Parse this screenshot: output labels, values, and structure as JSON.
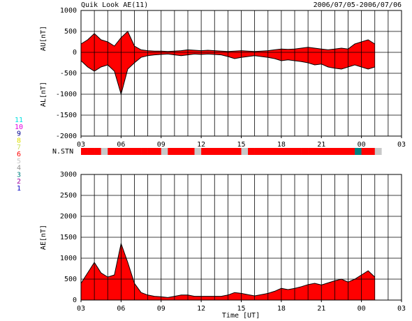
{
  "header": {
    "title": "Quik Look AE(11)",
    "date": "2006/07/05-2006/07/06",
    "xlabel": "Time [UT]"
  },
  "chart_data": [
    {
      "type": "band",
      "ylabels": [
        "AU[nT]",
        "AL[nT]"
      ],
      "x": [
        0,
        0.5,
        1,
        1.5,
        2,
        2.5,
        3,
        3.5,
        4,
        4.5,
        5,
        5.5,
        6,
        6.5,
        7,
        7.5,
        8,
        8.5,
        9,
        9.5,
        10,
        10.5,
        11,
        11.5,
        12,
        12.5,
        13,
        13.5,
        14,
        14.5,
        15,
        15.5,
        16,
        16.5,
        17,
        17.5,
        18,
        18.5,
        19,
        19.5,
        20,
        20.5,
        21,
        21.5,
        22
      ],
      "series": [
        {
          "name": "AU",
          "color": "#ff0000",
          "values": [
            200,
            300,
            450,
            300,
            250,
            150,
            350,
            500,
            150,
            60,
            40,
            30,
            30,
            20,
            30,
            40,
            60,
            50,
            40,
            50,
            40,
            30,
            20,
            30,
            40,
            30,
            20,
            30,
            40,
            60,
            80,
            70,
            80,
            100,
            120,
            100,
            80,
            60,
            80,
            100,
            80,
            200,
            250,
            300,
            200
          ]
        },
        {
          "name": "AL",
          "color": "#ff0000",
          "values": [
            -200,
            -350,
            -450,
            -350,
            -300,
            -450,
            -1000,
            -400,
            -250,
            -120,
            -80,
            -60,
            -50,
            -40,
            -60,
            -80,
            -60,
            -40,
            -50,
            -40,
            -50,
            -60,
            -100,
            -150,
            -120,
            -100,
            -80,
            -100,
            -120,
            -150,
            -200,
            -180,
            -200,
            -220,
            -250,
            -300,
            -280,
            -350,
            -380,
            -400,
            -350,
            -300,
            -350,
            -400,
            -350
          ]
        }
      ],
      "xlim": [
        0,
        24
      ],
      "ylim": [
        -2000,
        1000
      ],
      "yticks": [
        1000,
        500,
        0,
        -500,
        -1000,
        -1500,
        -2000
      ],
      "xticks": [
        {
          "value": 0,
          "label": "03"
        },
        {
          "value": 3,
          "label": "06"
        },
        {
          "value": 6,
          "label": "09"
        },
        {
          "value": 9,
          "label": "12"
        },
        {
          "value": 12,
          "label": "15"
        },
        {
          "value": 15,
          "label": "18"
        },
        {
          "value": 18,
          "label": "21"
        },
        {
          "value": 21,
          "label": "00"
        },
        {
          "value": 24,
          "label": "03"
        }
      ],
      "grid": true
    },
    {
      "type": "stn",
      "ylabel": "N.STN",
      "x": [
        0,
        0.5,
        1,
        1.5,
        2,
        2.5,
        3,
        3.5,
        4,
        4.5,
        5,
        5.5,
        6,
        6.5,
        7,
        7.5,
        8,
        8.5,
        9,
        9.5,
        10,
        10.5,
        11,
        11.5,
        12,
        12.5,
        13,
        13.5,
        14,
        14.5,
        15,
        15.5,
        16,
        16.5,
        17,
        17.5,
        18,
        18.5,
        19,
        19.5,
        20,
        20.5,
        21,
        21.5,
        22
      ],
      "values": [
        6,
        6,
        6,
        5,
        6,
        6,
        6,
        6,
        6,
        6,
        6,
        6,
        5,
        6,
        6,
        6,
        6,
        5,
        6,
        6,
        6,
        6,
        6,
        6,
        5,
        6,
        6,
        6,
        6,
        6,
        6,
        6,
        6,
        6,
        6,
        6,
        6,
        6,
        6,
        6,
        6,
        3,
        6,
        6,
        5
      ],
      "xlim": [
        0,
        24
      ],
      "legend": [
        {
          "label": "11",
          "color": "#00e0e0"
        },
        {
          "label": "10",
          "color": "#e000e0"
        },
        {
          "label": "9",
          "color": "#000090"
        },
        {
          "label": "8",
          "color": "#e0e000"
        },
        {
          "label": "7",
          "color": "#c8e060"
        },
        {
          "label": "6",
          "color": "#ff0000"
        },
        {
          "label": "5",
          "color": "#c8c8c8"
        },
        {
          "label": "4",
          "color": "#909090"
        },
        {
          "label": "3",
          "color": "#008080"
        },
        {
          "label": "2",
          "color": "#a000a0"
        },
        {
          "label": "1",
          "color": "#0000c0"
        }
      ]
    },
    {
      "type": "area",
      "ylabels": [
        "AE[nT]"
      ],
      "x": [
        0,
        0.5,
        1,
        1.5,
        2,
        2.5,
        3,
        3.5,
        4,
        4.5,
        5,
        5.5,
        6,
        6.5,
        7,
        7.5,
        8,
        8.5,
        9,
        9.5,
        10,
        10.5,
        11,
        11.5,
        12,
        12.5,
        13,
        13.5,
        14,
        14.5,
        15,
        15.5,
        16,
        16.5,
        17,
        17.5,
        18,
        18.5,
        19,
        19.5,
        20,
        20.5,
        21,
        21.5,
        22
      ],
      "series": [
        {
          "name": "AE",
          "color": "#ff0000",
          "values": [
            400,
            650,
            900,
            650,
            550,
            600,
            1350,
            900,
            400,
            180,
            120,
            90,
            80,
            60,
            90,
            120,
            120,
            90,
            90,
            90,
            90,
            90,
            120,
            180,
            160,
            130,
            100,
            130,
            160,
            210,
            280,
            250,
            280,
            320,
            370,
            400,
            360,
            410,
            460,
            500,
            430,
            500,
            600,
            700,
            550
          ]
        }
      ],
      "xlim": [
        0,
        24
      ],
      "ylim": [
        0,
        3000
      ],
      "yticks": [
        3000,
        2500,
        2000,
        1500,
        1000,
        500,
        0
      ],
      "xticks": [
        {
          "value": 0,
          "label": "03"
        },
        {
          "value": 3,
          "label": "06"
        },
        {
          "value": 6,
          "label": "09"
        },
        {
          "value": 9,
          "label": "12"
        },
        {
          "value": 12,
          "label": "15"
        },
        {
          "value": 15,
          "label": "18"
        },
        {
          "value": 18,
          "label": "21"
        },
        {
          "value": 21,
          "label": "00"
        },
        {
          "value": 24,
          "label": "03"
        }
      ],
      "grid": true
    }
  ]
}
